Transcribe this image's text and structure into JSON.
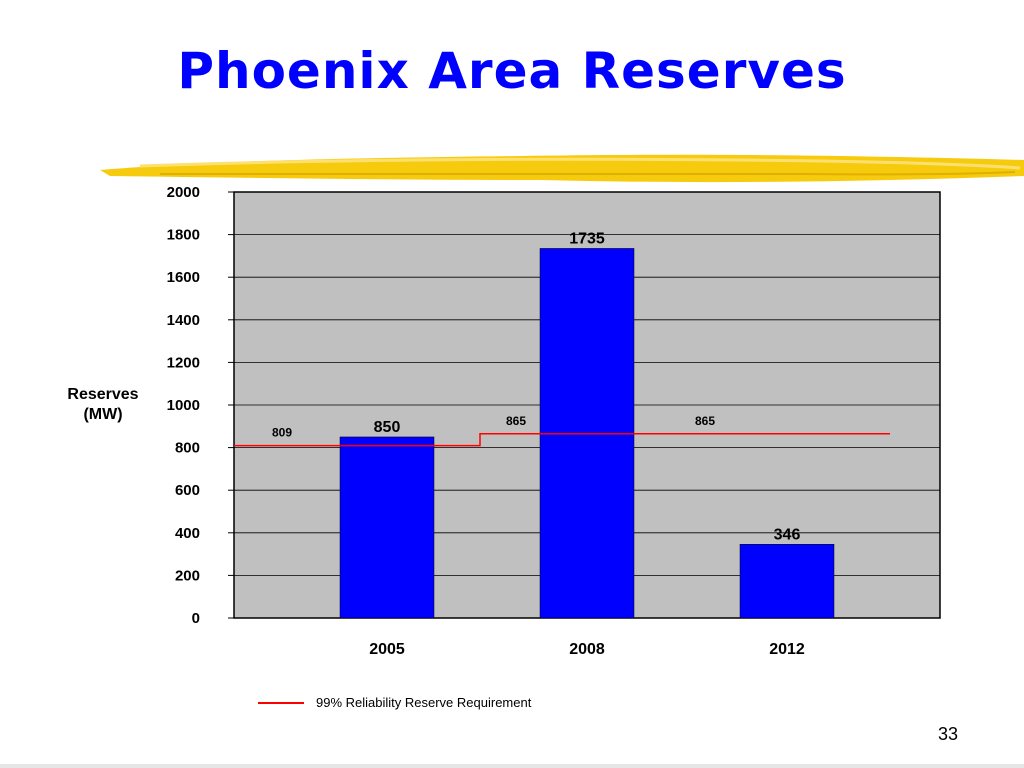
{
  "slide": {
    "title": "Phoenix Area Reserves",
    "page_number": "33"
  },
  "colors": {
    "title": "#0000ff",
    "bar": "#0000ff",
    "plot_background": "#c0c0c0",
    "requirement_line": "#ff0000",
    "brush_stroke": "#f5c800"
  },
  "chart_data": {
    "type": "bar",
    "title": "",
    "xlabel": "",
    "ylabel": "Reserves (MW)",
    "ylabel_lines": [
      "Reserves",
      "(MW)"
    ],
    "categories": [
      "2005",
      "2008",
      "2012"
    ],
    "values": [
      850,
      1735,
      346
    ],
    "value_labels": [
      "850",
      "1735",
      "346"
    ],
    "ylim": [
      0,
      2000
    ],
    "yticks": [
      0,
      200,
      400,
      600,
      800,
      1000,
      1200,
      1400,
      1600,
      1800,
      2000
    ],
    "grid": true,
    "requirement_line": {
      "name": "99% Reliability Reserve Requirement",
      "segments": [
        {
          "label": "809",
          "value": 809
        },
        {
          "label": "865",
          "value": 865
        },
        {
          "label": "865",
          "value": 865
        }
      ]
    },
    "legend": {
      "placement": "bottom",
      "entries": [
        "99% Reliability Reserve Requirement"
      ]
    }
  }
}
